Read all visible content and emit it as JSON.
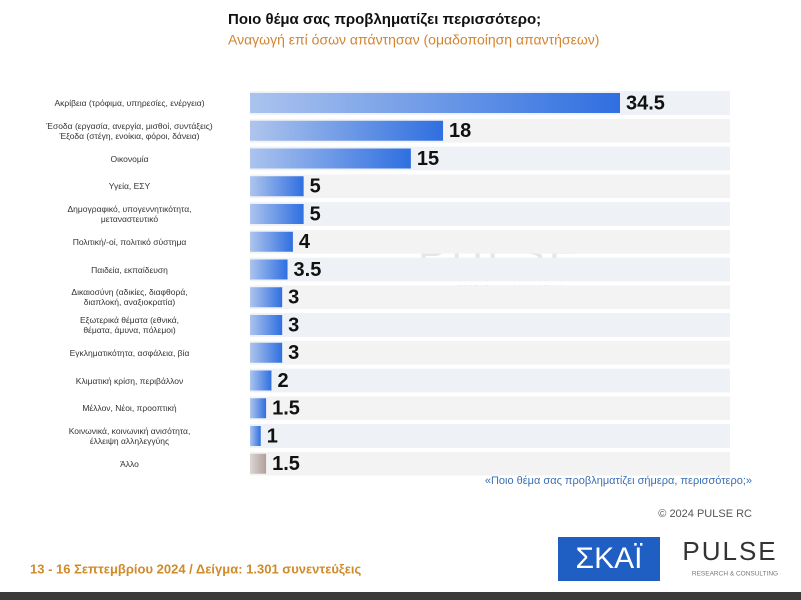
{
  "chart_data": {
    "type": "bar",
    "orientation": "horizontal",
    "title": "Ποιο θέμα σας προβληματίζει περισσότερο;",
    "subtitle": "Αναγωγή επί όσων απάντησαν   (ομαδοποίηση απαντήσεων)",
    "categories": [
      "Ακρίβεια (τρόφιμα, υπηρεσίες, ενέργεια)",
      "Έσοδα (εργασία, ανεργία, μισθοί, συντάξεις)\nΈξοδα (στέγη, ενοίκια, φόροι, δάνεια)",
      "Οικονομία",
      "Υγεία, ΕΣΥ",
      "Δημογραφικό, υπογεννητικότητα,\nμεταναστευτικό",
      "Πολιτική/-οί, πολιτικό σύστημα",
      "Παιδεία, εκπαίδευση",
      "Δικαιοσύνη (αδικίες, διαφθορά,\nδιαπλοκή, αναξιοκρατία)",
      "Εξωτερικά θέματα (εθνικά,\nθέματα, άμυνα, πόλεμοι)",
      "Εγκληματικότητα, ασφάλεια, βία",
      "Κλιματική κρίση, περιβάλλον",
      "Μέλλον, Νέοι, προοπτική",
      "Κοινωνικά, κοινωνική ανισότητα,\nέλλειψη αλληλεγγύης",
      "Άλλο"
    ],
    "values": [
      34.5,
      18,
      15,
      5,
      5,
      4,
      3.5,
      3,
      3,
      3,
      2,
      1.5,
      1,
      1.5
    ],
    "colors": [
      "#2f6fe0",
      "#2f6fe0",
      "#2f6fe0",
      "#2f6fe0",
      "#2f6fe0",
      "#2f6fe0",
      "#2f6fe0",
      "#2f6fe0",
      "#2f6fe0",
      "#2f6fe0",
      "#2f6fe0",
      "#2f6fe0",
      "#2f6fe0",
      "#b0a09a"
    ],
    "note": "«Ποιο θέμα σας προβληματίζει σήμερα, περισσότερο;»",
    "source": "© 2024 PULSE RC"
  },
  "footer": "13 - 16 Σεπτεμβρίου 2024  /  Δείγμα:  1.301 συνεντεύξεις",
  "logos": {
    "skai": "ΣΚΑΪ",
    "pulse": "PULSE",
    "pulse_sub": "RESEARCH & CONSULTING"
  }
}
